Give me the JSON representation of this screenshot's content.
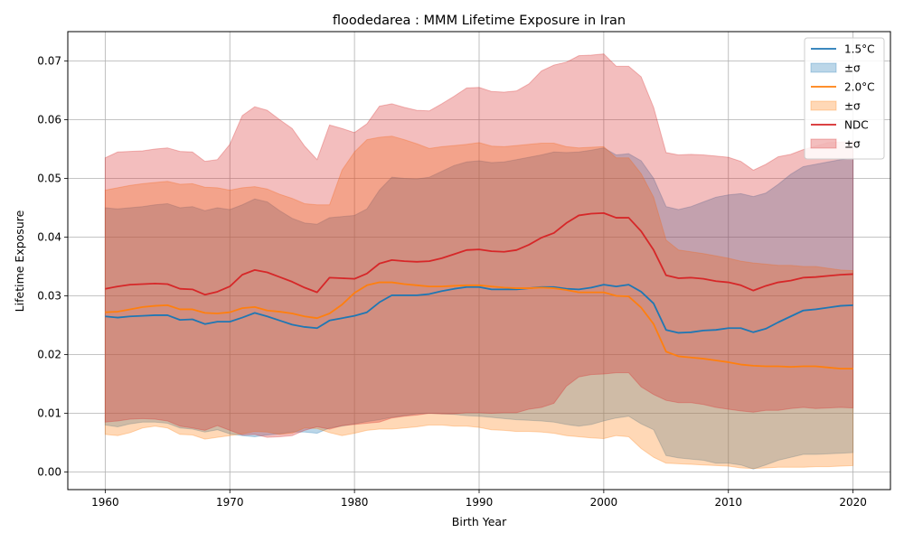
{
  "chart_data": {
    "type": "line",
    "title": "floodedarea : MMM Lifetime Exposure in Iran",
    "xlabel": "Birth Year",
    "ylabel": "Lifetime Exposure",
    "xlim": [
      1957,
      2023
    ],
    "ylim": [
      -0.003,
      0.075
    ],
    "xticks": [
      1960,
      1970,
      1980,
      1990,
      2000,
      2010,
      2020
    ],
    "xtick_labels": [
      "1960",
      "1970",
      "1980",
      "1990",
      "2000",
      "2010",
      "2020"
    ],
    "yticks": [
      0.0,
      0.01,
      0.02,
      0.03,
      0.04,
      0.05,
      0.06,
      0.07
    ],
    "ytick_labels": [
      "0.00",
      "0.01",
      "0.02",
      "0.03",
      "0.04",
      "0.05",
      "0.06",
      "0.07"
    ],
    "grid": true,
    "legend_position": "top-right",
    "legend": [
      "1.5°C",
      "±σ",
      "2.0°C",
      "±σ",
      "NDC",
      "±σ"
    ],
    "x": [
      1960,
      1961,
      1962,
      1963,
      1964,
      1965,
      1966,
      1967,
      1968,
      1969,
      1970,
      1971,
      1972,
      1973,
      1974,
      1975,
      1976,
      1977,
      1978,
      1979,
      1980,
      1981,
      1982,
      1983,
      1984,
      1985,
      1986,
      1987,
      1988,
      1989,
      1990,
      1991,
      1992,
      1993,
      1994,
      1995,
      1996,
      1997,
      1998,
      1999,
      2000,
      2001,
      2002,
      2003,
      2004,
      2005,
      2006,
      2007,
      2008,
      2009,
      2010,
      2011,
      2012,
      2013,
      2014,
      2015,
      2016,
      2017,
      2018,
      2019,
      2020
    ],
    "series": [
      {
        "name": "1.5°C",
        "color": "#1f77b4",
        "values": [
          0.0265,
          0.0263,
          0.0265,
          0.0266,
          0.0267,
          0.0267,
          0.0259,
          0.026,
          0.0252,
          0.0256,
          0.0256,
          0.0263,
          0.0271,
          0.0265,
          0.0258,
          0.0251,
          0.0247,
          0.0245,
          0.0258,
          0.0262,
          0.0266,
          0.0272,
          0.0289,
          0.0301,
          0.0301,
          0.0301,
          0.0303,
          0.0308,
          0.0312,
          0.0315,
          0.0315,
          0.0311,
          0.0311,
          0.0311,
          0.0313,
          0.0315,
          0.0315,
          0.0312,
          0.0311,
          0.0314,
          0.0319,
          0.0316,
          0.0319,
          0.0307,
          0.0287,
          0.0242,
          0.0237,
          0.0238,
          0.0241,
          0.0242,
          0.0245,
          0.0245,
          0.0238,
          0.0244,
          0.0255,
          0.0265,
          0.0275,
          0.0277,
          0.028,
          0.0283,
          0.0284
        ],
        "band_low": [
          0.008,
          0.0077,
          0.0082,
          0.0085,
          0.0085,
          0.0083,
          0.0075,
          0.0073,
          0.0068,
          0.0072,
          0.0065,
          0.0062,
          0.006,
          0.0063,
          0.0065,
          0.0068,
          0.0068,
          0.0066,
          0.0075,
          0.0078,
          0.0082,
          0.0086,
          0.0089,
          0.0093,
          0.0096,
          0.0099,
          0.01,
          0.0099,
          0.0098,
          0.0096,
          0.0095,
          0.0093,
          0.0091,
          0.0089,
          0.0088,
          0.0087,
          0.0085,
          0.0081,
          0.0078,
          0.0081,
          0.0087,
          0.0092,
          0.0095,
          0.0082,
          0.0072,
          0.0028,
          0.0024,
          0.0022,
          0.002,
          0.0015,
          0.0015,
          0.0012,
          0.0005,
          0.0012,
          0.002,
          0.0025,
          0.003,
          0.003,
          0.0031,
          0.0032,
          0.0033
        ],
        "band_high": [
          0.045,
          0.0448,
          0.045,
          0.0452,
          0.0455,
          0.0457,
          0.045,
          0.0452,
          0.0445,
          0.045,
          0.0447,
          0.0455,
          0.0465,
          0.046,
          0.0445,
          0.0432,
          0.0424,
          0.0422,
          0.0433,
          0.0435,
          0.0437,
          0.0448,
          0.048,
          0.0502,
          0.05,
          0.0499,
          0.0502,
          0.0512,
          0.0522,
          0.0528,
          0.053,
          0.0527,
          0.0528,
          0.0532,
          0.0536,
          0.054,
          0.0545,
          0.0544,
          0.0545,
          0.0548,
          0.0552,
          0.054,
          0.0542,
          0.053,
          0.05,
          0.0452,
          0.0447,
          0.0452,
          0.046,
          0.0468,
          0.0472,
          0.0474,
          0.0469,
          0.0475,
          0.049,
          0.0507,
          0.052,
          0.0524,
          0.0528,
          0.0532,
          0.0534
        ]
      },
      {
        "name": "2.0°C",
        "color": "#ff7f0e",
        "values": [
          0.0272,
          0.0273,
          0.0277,
          0.0281,
          0.0283,
          0.0284,
          0.0277,
          0.0277,
          0.0271,
          0.027,
          0.0272,
          0.0279,
          0.0281,
          0.0275,
          0.0273,
          0.027,
          0.0265,
          0.0262,
          0.027,
          0.0285,
          0.0305,
          0.0318,
          0.0323,
          0.0323,
          0.032,
          0.0318,
          0.0316,
          0.0316,
          0.0317,
          0.0318,
          0.0318,
          0.0316,
          0.0314,
          0.0313,
          0.0313,
          0.0314,
          0.0313,
          0.031,
          0.0306,
          0.0306,
          0.0306,
          0.03,
          0.0299,
          0.028,
          0.0252,
          0.0205,
          0.0197,
          0.0195,
          0.0193,
          0.019,
          0.0187,
          0.0183,
          0.0181,
          0.018,
          0.018,
          0.0179,
          0.018,
          0.018,
          0.0178,
          0.0176,
          0.0176
        ],
        "band_low": [
          0.0064,
          0.0062,
          0.0067,
          0.0075,
          0.0078,
          0.0075,
          0.0064,
          0.0063,
          0.0056,
          0.0059,
          0.0062,
          0.0065,
          0.0069,
          0.0068,
          0.0064,
          0.0066,
          0.0075,
          0.0074,
          0.0067,
          0.0062,
          0.0066,
          0.0071,
          0.0073,
          0.0073,
          0.0075,
          0.0077,
          0.008,
          0.008,
          0.0078,
          0.0078,
          0.0076,
          0.0072,
          0.0071,
          0.0069,
          0.0069,
          0.0068,
          0.0066,
          0.0062,
          0.006,
          0.0058,
          0.0057,
          0.0062,
          0.006,
          0.004,
          0.0025,
          0.0015,
          0.0014,
          0.0013,
          0.0012,
          0.0011,
          0.001,
          0.0007,
          0.0006,
          0.0007,
          0.0008,
          0.0008,
          0.0008,
          0.0009,
          0.0009,
          0.001,
          0.0011
        ],
        "band_high": [
          0.048,
          0.0484,
          0.0488,
          0.0491,
          0.0493,
          0.0495,
          0.049,
          0.0491,
          0.0485,
          0.0484,
          0.048,
          0.0484,
          0.0486,
          0.0482,
          0.0473,
          0.0466,
          0.0457,
          0.0455,
          0.0455,
          0.0514,
          0.0545,
          0.0566,
          0.057,
          0.0572,
          0.0566,
          0.0559,
          0.0551,
          0.0554,
          0.0556,
          0.0558,
          0.0561,
          0.0555,
          0.0554,
          0.0556,
          0.0558,
          0.056,
          0.056,
          0.0554,
          0.0552,
          0.0553,
          0.0554,
          0.0535,
          0.0535,
          0.0508,
          0.0468,
          0.0395,
          0.0378,
          0.0375,
          0.0372,
          0.0368,
          0.0364,
          0.0359,
          0.0356,
          0.0354,
          0.0352,
          0.0352,
          0.035,
          0.035,
          0.0347,
          0.0344,
          0.0343
        ]
      },
      {
        "name": "NDC",
        "color": "#d62728",
        "values": [
          0.0312,
          0.0316,
          0.0319,
          0.032,
          0.0321,
          0.032,
          0.0312,
          0.0311,
          0.0302,
          0.0307,
          0.0316,
          0.0336,
          0.0344,
          0.034,
          0.0332,
          0.0324,
          0.0314,
          0.0306,
          0.0331,
          0.033,
          0.0329,
          0.0338,
          0.0355,
          0.0361,
          0.0359,
          0.0358,
          0.0359,
          0.0364,
          0.0371,
          0.0378,
          0.0379,
          0.0376,
          0.0375,
          0.0378,
          0.0387,
          0.0399,
          0.0407,
          0.0424,
          0.0437,
          0.044,
          0.0441,
          0.0433,
          0.0433,
          0.041,
          0.0378,
          0.0335,
          0.033,
          0.0331,
          0.0329,
          0.0325,
          0.0323,
          0.0318,
          0.0309,
          0.0317,
          0.0323,
          0.0326,
          0.0331,
          0.0332,
          0.0334,
          0.0336,
          0.0337
        ],
        "band_low": [
          0.0085,
          0.0087,
          0.009,
          0.0091,
          0.009,
          0.0087,
          0.0078,
          0.0075,
          0.0071,
          0.0079,
          0.0071,
          0.0063,
          0.0064,
          0.0059,
          0.006,
          0.0062,
          0.0071,
          0.0077,
          0.0073,
          0.0079,
          0.0081,
          0.0083,
          0.0085,
          0.0092,
          0.0095,
          0.0097,
          0.01,
          0.0099,
          0.0099,
          0.0101,
          0.0101,
          0.01,
          0.0101,
          0.0101,
          0.0107,
          0.011,
          0.0117,
          0.0146,
          0.0162,
          0.0166,
          0.0167,
          0.0169,
          0.0169,
          0.0145,
          0.0132,
          0.0122,
          0.0118,
          0.0118,
          0.0115,
          0.011,
          0.0107,
          0.0104,
          0.0102,
          0.0105,
          0.0105,
          0.0108,
          0.011,
          0.0108,
          0.0109,
          0.011,
          0.0109
        ],
        "band_high": [
          0.0535,
          0.0545,
          0.0546,
          0.0547,
          0.055,
          0.0552,
          0.0546,
          0.0545,
          0.0529,
          0.0532,
          0.0558,
          0.0607,
          0.0622,
          0.0616,
          0.06,
          0.0585,
          0.0555,
          0.0532,
          0.0591,
          0.0585,
          0.0578,
          0.0593,
          0.0623,
          0.0627,
          0.0621,
          0.0616,
          0.0615,
          0.0627,
          0.064,
          0.0654,
          0.0655,
          0.0648,
          0.0647,
          0.0649,
          0.0661,
          0.0683,
          0.0693,
          0.0698,
          0.0709,
          0.071,
          0.0712,
          0.0691,
          0.0691,
          0.0673,
          0.0621,
          0.0544,
          0.054,
          0.0541,
          0.054,
          0.0538,
          0.0536,
          0.0529,
          0.0514,
          0.0524,
          0.0537,
          0.0541,
          0.0549,
          0.0555,
          0.0561,
          0.0562,
          0.0563
        ]
      }
    ]
  }
}
